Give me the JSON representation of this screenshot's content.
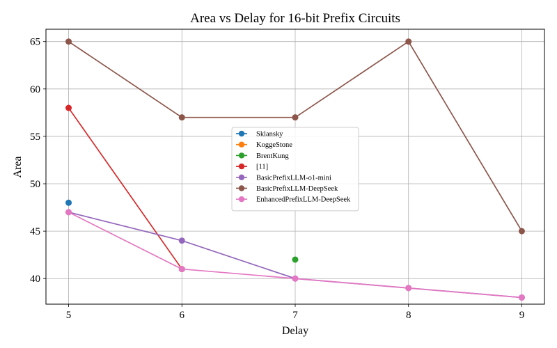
{
  "chart_data": {
    "type": "line",
    "title": "Area vs Delay for 16-bit Prefix Circuits",
    "xlabel": "Delay",
    "ylabel": "Area",
    "xlim": [
      4.8,
      9.2
    ],
    "ylim": [
      37.3,
      66.3
    ],
    "xticks": [
      5,
      6,
      7,
      8,
      9
    ],
    "yticks": [
      40,
      45,
      50,
      55,
      60,
      65
    ],
    "grid": true,
    "legend_position": "center",
    "series": [
      {
        "name": "Sklansky",
        "color": "#1f77b4",
        "points": [
          [
            5,
            48
          ]
        ]
      },
      {
        "name": "KoggeStone",
        "color": "#ff7f0e",
        "points": []
      },
      {
        "name": "BrentKung",
        "color": "#2ca02c",
        "points": [
          [
            7,
            42
          ]
        ]
      },
      {
        "name": "[11]",
        "color": "#d62728",
        "points": [
          [
            5,
            58
          ],
          [
            6,
            41
          ]
        ]
      },
      {
        "name": "BasicPrefixLLM-o1-mini",
        "color": "#9467bd",
        "points": [
          [
            5,
            47
          ],
          [
            6,
            44
          ],
          [
            7,
            40
          ],
          [
            8,
            39
          ],
          [
            9,
            38
          ]
        ]
      },
      {
        "name": "BasicPrefixLLM-DeepSeek",
        "color": "#8c564b",
        "points": [
          [
            5,
            65
          ],
          [
            6,
            57
          ],
          [
            7,
            57
          ],
          [
            8,
            65
          ],
          [
            9,
            45
          ]
        ]
      },
      {
        "name": "EnhancedPrefixLLM-DeepSeek",
        "color": "#e377c2",
        "points": [
          [
            5,
            47
          ],
          [
            6,
            41
          ],
          [
            7,
            40
          ],
          [
            8,
            39
          ],
          [
            9,
            38
          ]
        ]
      }
    ]
  }
}
